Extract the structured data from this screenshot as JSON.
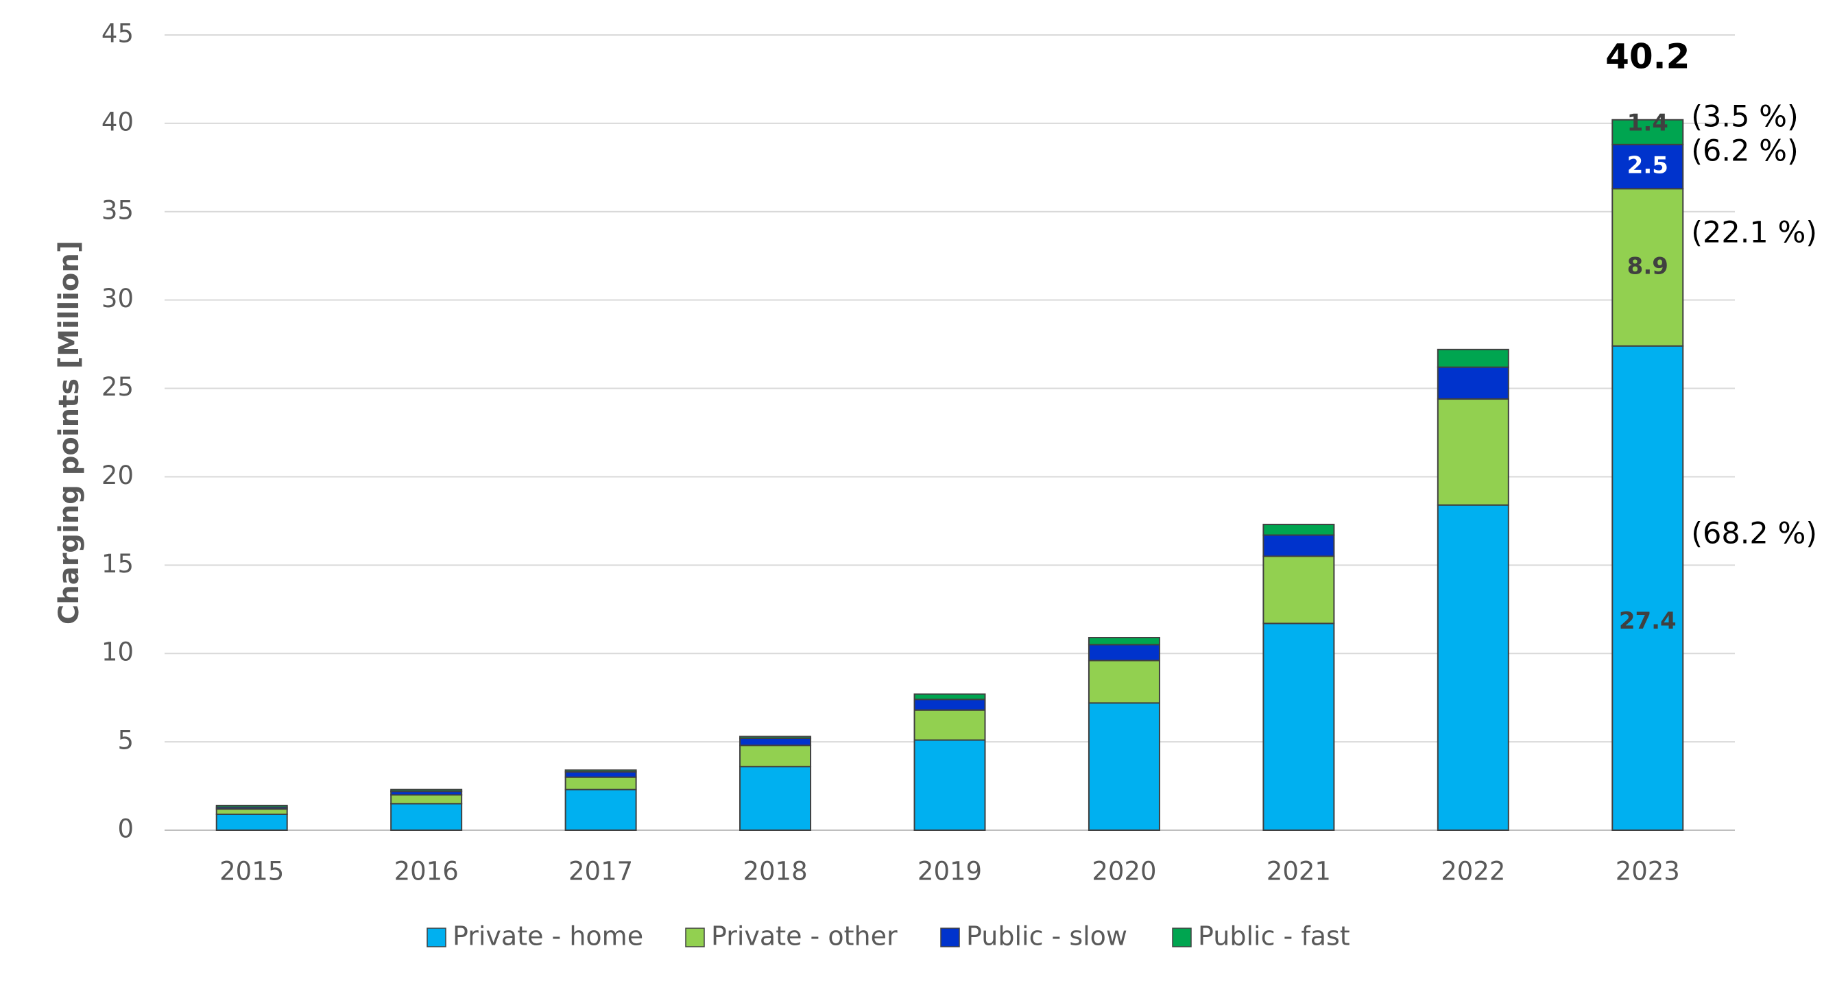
{
  "chart_data": {
    "type": "stacked-bar",
    "y_axis_label": "Charging points [Million]",
    "categories": [
      "2015",
      "2016",
      "2017",
      "2018",
      "2019",
      "2020",
      "2021",
      "2022",
      "2023"
    ],
    "series": [
      {
        "name": "Private - home",
        "color": "#00b0f0",
        "values": [
          0.9,
          1.5,
          2.3,
          3.6,
          5.1,
          7.2,
          11.7,
          18.4,
          27.4
        ],
        "share_label": "(68.2 %)"
      },
      {
        "name": "Private - other",
        "color": "#92d050",
        "values": [
          0.3,
          0.5,
          0.7,
          1.2,
          1.7,
          2.4,
          3.8,
          6.0,
          8.9
        ],
        "share_label": "(22.1 %)"
      },
      {
        "name": "Public - slow",
        "color": "#0033cc",
        "values": [
          0.1,
          0.2,
          0.3,
          0.4,
          0.6,
          0.9,
          1.2,
          1.8,
          2.5
        ],
        "share_label": "(6.2 %)"
      },
      {
        "name": "Public - fast",
        "color": "#00a550",
        "values": [
          0.1,
          0.1,
          0.1,
          0.1,
          0.3,
          0.4,
          0.6,
          1.0,
          1.4
        ],
        "share_label": "(3.5 %)"
      }
    ],
    "data_labels_category": "2023",
    "total_label": 40.2,
    "ylim": [
      0,
      45
    ],
    "yticks": [
      0,
      5,
      10,
      15,
      20,
      25,
      30,
      35,
      40,
      45
    ],
    "grid": true
  }
}
